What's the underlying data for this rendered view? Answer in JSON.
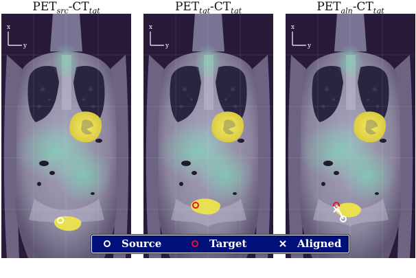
{
  "panels": [
    {
      "title_main": "PET",
      "title_sub1": "src",
      "title_mid": "-CT",
      "title_sub2": "tgt",
      "markers": [
        "source"
      ]
    },
    {
      "title_main": "PET",
      "title_sub1": "tgt",
      "title_mid": "-CT",
      "title_sub2": "tgt",
      "markers": [
        "target"
      ]
    },
    {
      "title_main": "PET",
      "title_sub1": "aln",
      "title_mid": "-CT",
      "title_sub2": "tgt",
      "markers": [
        "source",
        "target",
        "aligned"
      ]
    }
  ],
  "axes_label": {
    "x": "x",
    "y": "y"
  },
  "legend": {
    "source_label": "Source",
    "target_label": "Target",
    "aligned_label": "Aligned"
  },
  "colors": {
    "legend_bg": "#000f7a",
    "source_marker": "#ffffff",
    "target_marker": "#e0141e",
    "aligned_marker": "#ffffff",
    "pet_uptake": "#e8e050",
    "scan_bg": "#2a1a3a"
  }
}
